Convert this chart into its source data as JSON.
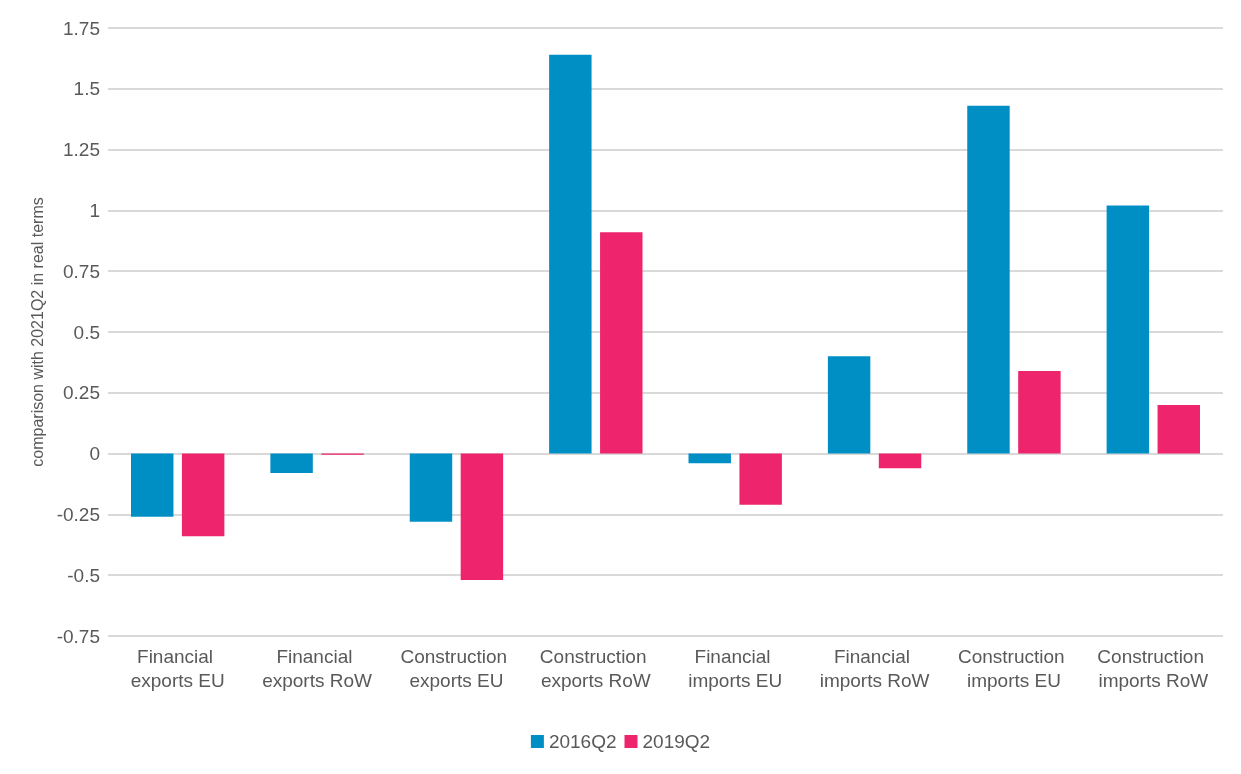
{
  "chart_data": {
    "type": "bar",
    "ylabel": "comparison with 2021Q2 in real terms",
    "categories": [
      "Financial exports EU",
      "Financial exports RoW",
      "Construction exports EU",
      "Construction exports RoW",
      "Financial imports EU",
      "Financial imports RoW",
      "Construction imports EU",
      "Construction imports RoW"
    ],
    "series": [
      {
        "name": "2016Q2",
        "color": "#008fc5",
        "values": [
          -0.26,
          -0.08,
          -0.28,
          1.64,
          -0.04,
          0.4,
          1.43,
          1.02
        ]
      },
      {
        "name": "2019Q2",
        "color": "#ee256c",
        "values": [
          -0.34,
          -0.005,
          -0.52,
          0.91,
          -0.21,
          -0.06,
          0.34,
          0.2
        ]
      }
    ],
    "ylim": [
      -0.75,
      1.75
    ],
    "yticks": [
      -0.75,
      -0.5,
      -0.25,
      0,
      0.25,
      0.5,
      0.75,
      1,
      1.25,
      1.5,
      1.75
    ],
    "grid": "y",
    "legend": "bottom"
  }
}
